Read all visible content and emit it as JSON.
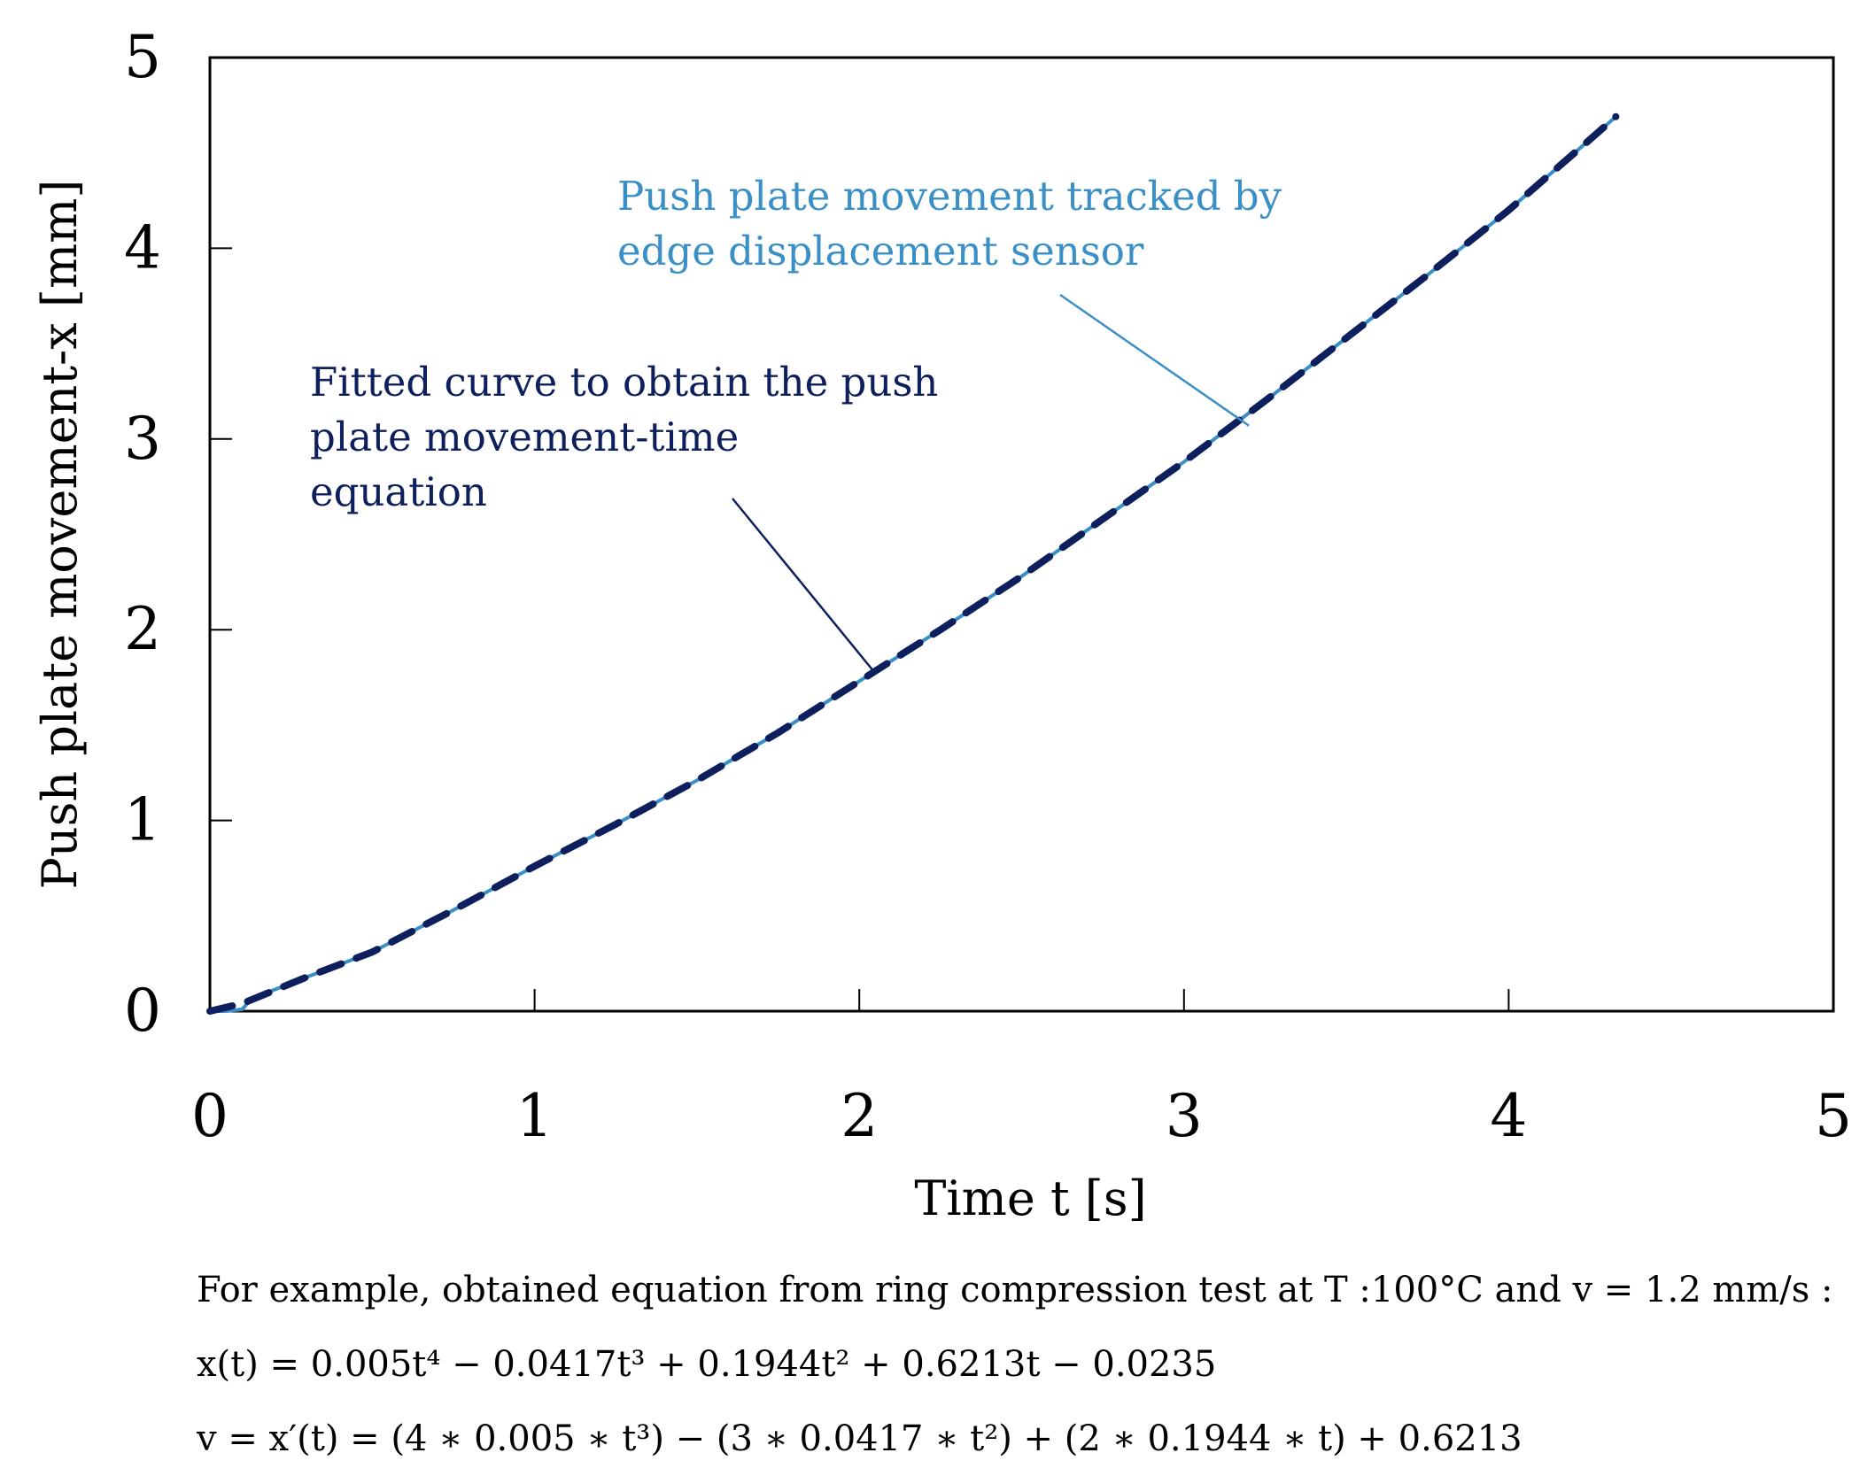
{
  "chart_data": {
    "type": "line",
    "xlabel": "Time t [s]",
    "ylabel": "Push plate movement-x [mm]",
    "xlim": [
      0,
      5
    ],
    "ylim": [
      0,
      5
    ],
    "xticks": [
      "0",
      "1",
      "2",
      "3",
      "4",
      "5"
    ],
    "yticks": [
      "0",
      "1",
      "2",
      "3",
      "4",
      "5"
    ],
    "grid": false,
    "series": [
      {
        "name": "Push plate movement tracked by edge displacement sensor",
        "style": "solid",
        "color": "#3a8fc7",
        "x": [
          0,
          0.05,
          0.1,
          0.12,
          0.15,
          0.3,
          0.5,
          0.75,
          1.0,
          1.25,
          1.5,
          1.75,
          2.0,
          2.25,
          2.5,
          2.75,
          3.0,
          3.25,
          3.5,
          3.75,
          4.0,
          4.25,
          4.33
        ],
        "y": [
          0,
          0.0,
          0.01,
          0.05,
          0.08,
          0.18,
          0.31,
          0.53,
          0.76,
          0.98,
          1.21,
          1.46,
          1.73,
          2.0,
          2.28,
          2.58,
          2.88,
          3.2,
          3.53,
          3.86,
          4.2,
          4.57,
          4.69
        ]
      },
      {
        "name": "Fitted curve to obtain the push plate movement-time equation",
        "style": "dashed",
        "color": "#0d1f5c",
        "x": [
          0,
          0.1,
          0.3,
          0.5,
          0.75,
          1.0,
          1.25,
          1.5,
          1.75,
          2.0,
          2.25,
          2.5,
          2.75,
          3.0,
          3.25,
          3.5,
          3.75,
          4.0,
          4.25,
          4.33
        ],
        "y": [
          0,
          0.04,
          0.18,
          0.31,
          0.53,
          0.76,
          0.98,
          1.21,
          1.46,
          1.73,
          2.0,
          2.28,
          2.58,
          2.88,
          3.2,
          3.53,
          3.86,
          4.2,
          4.57,
          4.69
        ]
      }
    ],
    "annotations": [
      {
        "lines": [
          "Push plate movement tracked by",
          "edge displacement sensor"
        ],
        "color": "#3a8fc7",
        "points_to": [
          3.2,
          3.07
        ]
      },
      {
        "lines": [
          "Fitted curve to obtain the push",
          "plate movement-time",
          "equation"
        ],
        "color": "#0d1f5c",
        "points_to": [
          2.05,
          1.77
        ]
      }
    ]
  },
  "equations": {
    "intro": "For example, obtained equation from ring compression test at T :100°C and v = 1.2 mm/s :",
    "x_eq": "x(t) = 0.005t⁴ − 0.0417t³ + 0.1944t² + 0.6213t − 0.0235",
    "v_eq": "v = x′(t) = (4 ∗ 0.005 ∗ t³) − (3 ∗ 0.0417 ∗ t²) + (2 ∗ 0.1944 ∗ t) + 0.6213"
  }
}
